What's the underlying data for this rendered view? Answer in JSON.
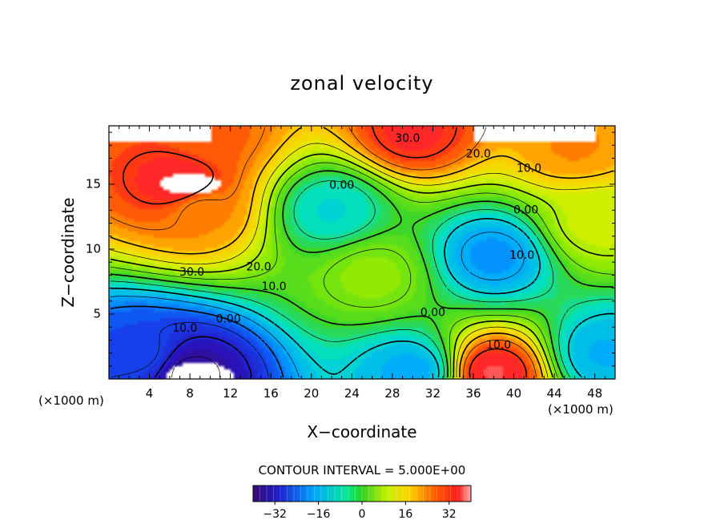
{
  "chart_data": {
    "type": "heatmap",
    "title": "zonal velocity",
    "xlabel": "X−coordinate",
    "ylabel": "Z−coordinate",
    "x_unit_left": "(×1000 m)",
    "x_unit_right": "(×1000 m)",
    "xlim": [
      0,
      50
    ],
    "ylim": [
      0,
      19.5
    ],
    "x_ticks": [
      4,
      8,
      12,
      16,
      20,
      24,
      28,
      32,
      36,
      40,
      44,
      48
    ],
    "y_ticks": [
      5,
      10,
      15
    ],
    "contour_interval_label": "CONTOUR INTERVAL = 5.000E+00",
    "contour_interval": 5,
    "colorbar": {
      "range": [
        -40,
        40
      ],
      "ticks": [
        -32,
        -16,
        0,
        16,
        32
      ],
      "tick_labels": [
        "−32",
        "−16",
        "0",
        "16",
        "32"
      ]
    },
    "contour_labels": [
      {
        "text": "30.0",
        "x": 29.5,
        "y": 18.5
      },
      {
        "text": "20.0",
        "x": 36.5,
        "y": 17.3
      },
      {
        "text": "10.0",
        "x": 41.5,
        "y": 16.2
      },
      {
        "text": "0.00",
        "x": 23.0,
        "y": 14.9
      },
      {
        "text": "0.00",
        "x": 41.2,
        "y": 13.0
      },
      {
        "text": "10.0",
        "x": 40.8,
        "y": 9.5
      },
      {
        "text": "30.0",
        "x": 8.2,
        "y": 8.2
      },
      {
        "text": "20.0",
        "x": 14.8,
        "y": 8.6
      },
      {
        "text": "10.0",
        "x": 16.3,
        "y": 7.1
      },
      {
        "text": "0.00",
        "x": 11.8,
        "y": 4.6
      },
      {
        "text": "10.0",
        "x": 7.5,
        "y": 3.9
      },
      {
        "text": "0.00",
        "x": 32.0,
        "y": 5.1
      },
      {
        "text": "10.0",
        "x": 38.5,
        "y": 2.6
      }
    ],
    "field_centers": [
      {
        "x": 7,
        "z": 15,
        "u": 34
      },
      {
        "x": 9,
        "z": 13,
        "u": 24
      },
      {
        "x": 30,
        "z": 19,
        "u": 32
      },
      {
        "x": 10,
        "z": 19,
        "u": 27
      },
      {
        "x": 46,
        "z": 18,
        "u": 24
      },
      {
        "x": 22,
        "z": 13,
        "u": -9
      },
      {
        "x": 38,
        "z": 9.5,
        "u": -17
      },
      {
        "x": 8,
        "z": 0.5,
        "u": -36
      },
      {
        "x": 3,
        "z": 2,
        "u": -24
      },
      {
        "x": 38,
        "z": 0.5,
        "u": 34
      },
      {
        "x": 30,
        "z": 0.5,
        "u": -15
      },
      {
        "x": 49,
        "z": 2,
        "u": -14
      },
      {
        "x": 26,
        "z": 8,
        "u": 7
      },
      {
        "x": 48,
        "z": 12,
        "u": 12
      }
    ],
    "missing_regions": [
      {
        "x": 8,
        "z": 15,
        "rx": 3,
        "rz": 0.8
      },
      {
        "x": 9,
        "z": 0.1,
        "rx": 3.3,
        "rz": 1.2
      }
    ]
  }
}
